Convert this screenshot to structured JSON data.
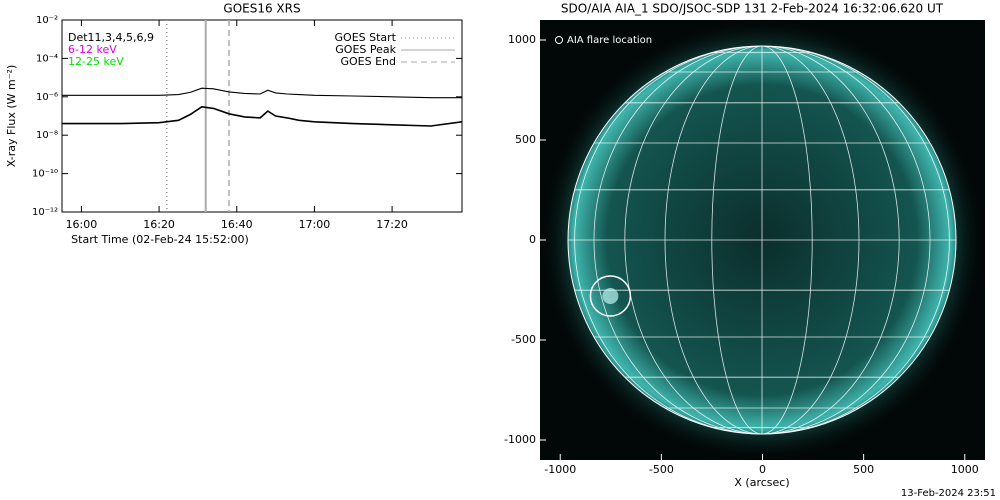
{
  "chart_data": [
    {
      "type": "line",
      "title": "GOES16 XRS",
      "detectors": "Det11,3,4,5,6,9",
      "xlabel": "Start Time (02-Feb-24 15:52:00)",
      "ylabel": "X-ray Flux (W m⁻²)",
      "x": [
        "15:55",
        "16:00",
        "16:10",
        "16:20",
        "16:25",
        "16:28",
        "16:31",
        "16:34",
        "16:38",
        "16:42",
        "16:46",
        "16:48",
        "16:50",
        "16:53",
        "16:56",
        "17:00",
        "17:10",
        "17:20",
        "17:30",
        "17:38"
      ],
      "series": [
        {
          "name": "6-12 keV",
          "color": "#000000",
          "label_color": "#e000e0",
          "values": [
            1.2e-06,
            1.2e-06,
            1.2e-06,
            1.2e-06,
            1.3e-06,
            1.7e-06,
            2.8e-06,
            2.6e-06,
            1.8e-06,
            1.5e-06,
            1.4e-06,
            2.2e-06,
            1.6e-06,
            1.4e-06,
            1.3e-06,
            1.2e-06,
            1.1e-06,
            1e-06,
            9e-07,
            9e-07
          ]
        },
        {
          "name": "12-25 keV",
          "color": "#000000",
          "label_color": "#00e000",
          "values": [
            4e-08,
            4e-08,
            4e-08,
            4.5e-08,
            6e-08,
            1.2e-07,
            3e-07,
            2.5e-07,
            1.3e-07,
            9e-08,
            8e-08,
            1.8e-07,
            1e-07,
            8e-08,
            6e-08,
            5e-08,
            4e-08,
            3.5e-08,
            3e-08,
            5e-08
          ]
        }
      ],
      "events": [
        {
          "name": "GOES Start",
          "x": "16:22",
          "style": "dotted",
          "color": "#999999"
        },
        {
          "name": "GOES Peak",
          "x": "16:32",
          "style": "solid",
          "color": "#aaaaaa"
        },
        {
          "name": "GOES End",
          "x": "16:38",
          "style": "dashed",
          "color": "#aaaaaa"
        }
      ],
      "xlim": [
        "15:55",
        "17:38"
      ],
      "xticks": [
        "16:00",
        "16:20",
        "16:40",
        "17:00",
        "17:20"
      ],
      "log_y": true,
      "ylim": [
        1e-12,
        0.01
      ],
      "yticks": [
        {
          "value": 1e-12,
          "label": "10⁻¹²"
        },
        {
          "value": 1e-10,
          "label": "10⁻¹⁰"
        },
        {
          "value": 1e-08,
          "label": "10⁻⁸"
        },
        {
          "value": 1e-06,
          "label": "10⁻⁶"
        },
        {
          "value": 0.0001,
          "label": "10⁻⁴"
        },
        {
          "value": 0.01,
          "label": "10⁻²"
        }
      ]
    },
    {
      "type": "image",
      "title": "SDO/AIA AIA_1 SDO/JSOC-SDP 131  2-Feb-2024 16:32:06.620 UT",
      "xlabel": "X (arcsec)",
      "annotation": "AIA flare location",
      "flare_location": {
        "x": -752,
        "y": -280
      },
      "xlim": [
        -1100,
        1100
      ],
      "ylim": [
        -1100,
        1100
      ],
      "xticks": [
        -1000,
        -500,
        0,
        500,
        1000
      ],
      "yticks": [
        -1000,
        -500,
        0,
        500,
        1000
      ],
      "footer": "13-Feb-2024 23:51"
    }
  ]
}
